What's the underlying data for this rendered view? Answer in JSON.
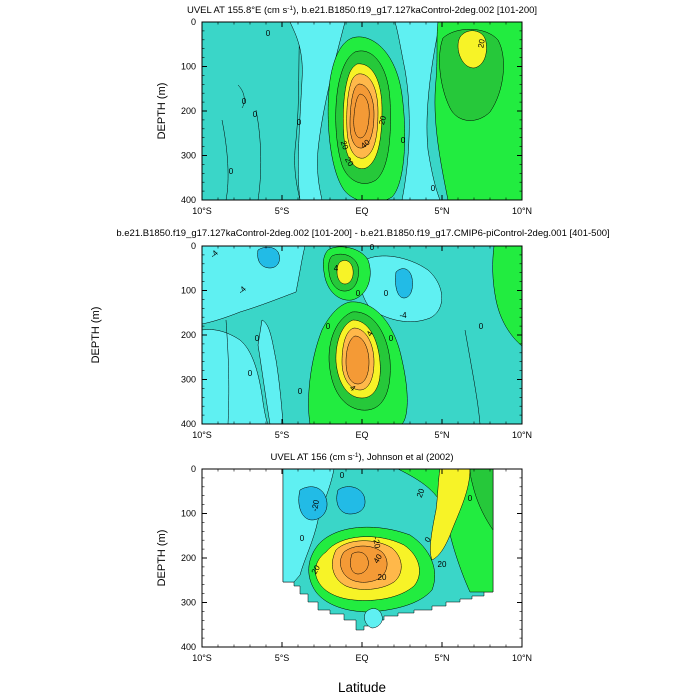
{
  "figure": {
    "xlabel": "Latitude",
    "colors": {
      "white": "#ffffff",
      "cyan_dark": "#22bbe6",
      "cyan_light": "#5ff0f2",
      "aqua": "#3ad6c8",
      "green_light": "#22ec40",
      "green_mid": "#26c83a",
      "yellow": "#f7f327",
      "orange_light": "#ffb84a",
      "orange": "#f49a36",
      "line": "#000000"
    }
  },
  "chart_data": [
    {
      "type": "contour",
      "title": "UVEL AT 155.8°E (cm s",
      "title_unit_exp": "-1",
      "title_tail": "), b.e21.B1850.f19_g17.127kaControl-2deg.002 [101-200]",
      "xlabel": "",
      "ylabel": "DEPTH (m)",
      "xlim": [
        -10,
        10
      ],
      "ylim": [
        400,
        0
      ],
      "x_ticks": [
        "10°S",
        "5°S",
        "EQ",
        "5°N",
        "10°N"
      ],
      "y_ticks": [
        "0",
        "100",
        "200",
        "300",
        "400"
      ],
      "contour_labels": [
        "20",
        "0",
        "0",
        "0",
        "0",
        "0",
        "20",
        "0",
        "20",
        "40",
        "20",
        "0"
      ]
    },
    {
      "type": "contour",
      "title": "b.e21.B1850.f19_g17.127kaControl-2deg.002 [101-200] - b.e21.B1850.f19_g17.CMIP6-piControl-2deg.001 [401-500]",
      "xlabel": "",
      "ylabel": "DEPTH (m)",
      "xlim": [
        -10,
        10
      ],
      "ylim": [
        400,
        0
      ],
      "x_ticks": [
        "10°S",
        "5°S",
        "EQ",
        "5°N",
        "10°N"
      ],
      "y_ticks": [
        "0",
        "100",
        "200",
        "300",
        "400"
      ],
      "contour_labels": [
        "-4",
        "-4",
        "0",
        "4",
        "0",
        "-4",
        "0",
        "0",
        "0",
        "0",
        "4",
        "0",
        "0",
        "4",
        "0"
      ]
    },
    {
      "type": "contour",
      "title": "UVEL AT 156 (cm s",
      "title_unit_exp": "-1",
      "title_tail": "), Johnson et al (2002)",
      "xlabel": "Latitude",
      "ylabel": "DEPTH (m)",
      "xlim": [
        -10,
        10
      ],
      "ylim": [
        400,
        0
      ],
      "x_ticks": [
        "10°S",
        "5°S",
        "EQ",
        "5°N",
        "10°N"
      ],
      "y_ticks": [
        "0",
        "100",
        "200",
        "300",
        "400"
      ],
      "contour_labels": [
        "-20",
        "0",
        "-20",
        "20",
        "0",
        "40",
        "20",
        "20",
        "0",
        "0",
        "20"
      ]
    }
  ]
}
